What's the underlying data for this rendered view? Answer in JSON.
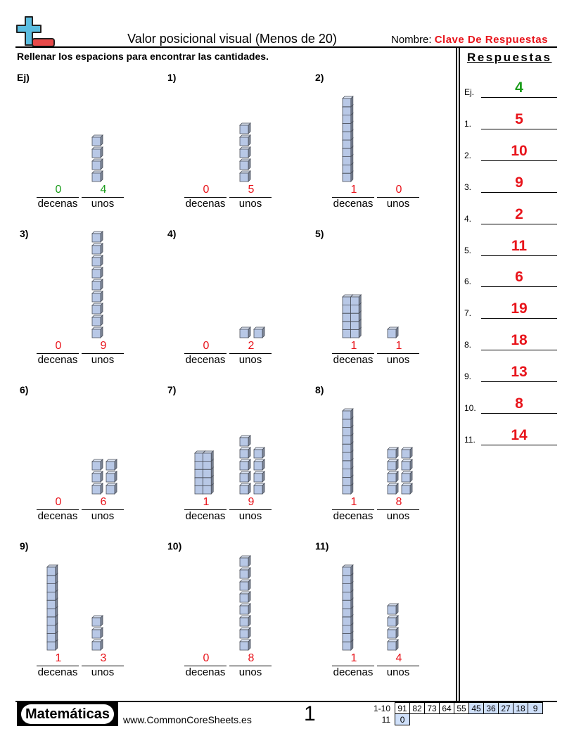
{
  "header": {
    "title": "Valor posicional visual (Menos de 20)",
    "name_label": "Nombre:",
    "name_value": "Clave De Respuestas",
    "instructions": "Rellenar los espacions para encontrar las cantidades."
  },
  "labels": {
    "tens": "decenas",
    "ones": "unos"
  },
  "colors": {
    "answer": "#e8141b",
    "example": "#1a9c1a",
    "cube": "#b8c8e6"
  },
  "problems": [
    {
      "label": "Ej)",
      "tens": 0,
      "ones": 4,
      "example": true
    },
    {
      "label": "1)",
      "tens": 0,
      "ones": 5
    },
    {
      "label": "2)",
      "tens": 1,
      "ones": 0
    },
    {
      "label": "3)",
      "tens": 0,
      "ones": 9
    },
    {
      "label": "4)",
      "tens": 0,
      "ones": 2
    },
    {
      "label": "5)",
      "tens": 1,
      "ones": 1
    },
    {
      "label": "6)",
      "tens": 0,
      "ones": 6
    },
    {
      "label": "7)",
      "tens": 1,
      "ones": 9
    },
    {
      "label": "8)",
      "tens": 1,
      "ones": 8
    },
    {
      "label": "9)",
      "tens": 1,
      "ones": 3
    },
    {
      "label": "10)",
      "tens": 0,
      "ones": 8
    },
    {
      "label": "11)",
      "tens": 1,
      "ones": 4
    }
  ],
  "answers": {
    "title": "Respuestas",
    "items": [
      {
        "label": "Ej.",
        "value": "4",
        "example": true
      },
      {
        "label": "1.",
        "value": "5"
      },
      {
        "label": "2.",
        "value": "10"
      },
      {
        "label": "3.",
        "value": "9"
      },
      {
        "label": "4.",
        "value": "2"
      },
      {
        "label": "5.",
        "value": "11"
      },
      {
        "label": "6.",
        "value": "6"
      },
      {
        "label": "7.",
        "value": "19"
      },
      {
        "label": "8.",
        "value": "18"
      },
      {
        "label": "9.",
        "value": "13"
      },
      {
        "label": "10.",
        "value": "8"
      },
      {
        "label": "11.",
        "value": "14"
      }
    ]
  },
  "footer": {
    "brand": "Matemáticas",
    "url": "www.CommonCoreSheets.es",
    "page": "1",
    "key_rows": [
      {
        "label": "1-10",
        "cells": [
          "91",
          "82",
          "73",
          "64",
          "55",
          "45",
          "36",
          "27",
          "18",
          "9"
        ]
      },
      {
        "label": "11",
        "cells": [
          "0"
        ]
      }
    ]
  }
}
